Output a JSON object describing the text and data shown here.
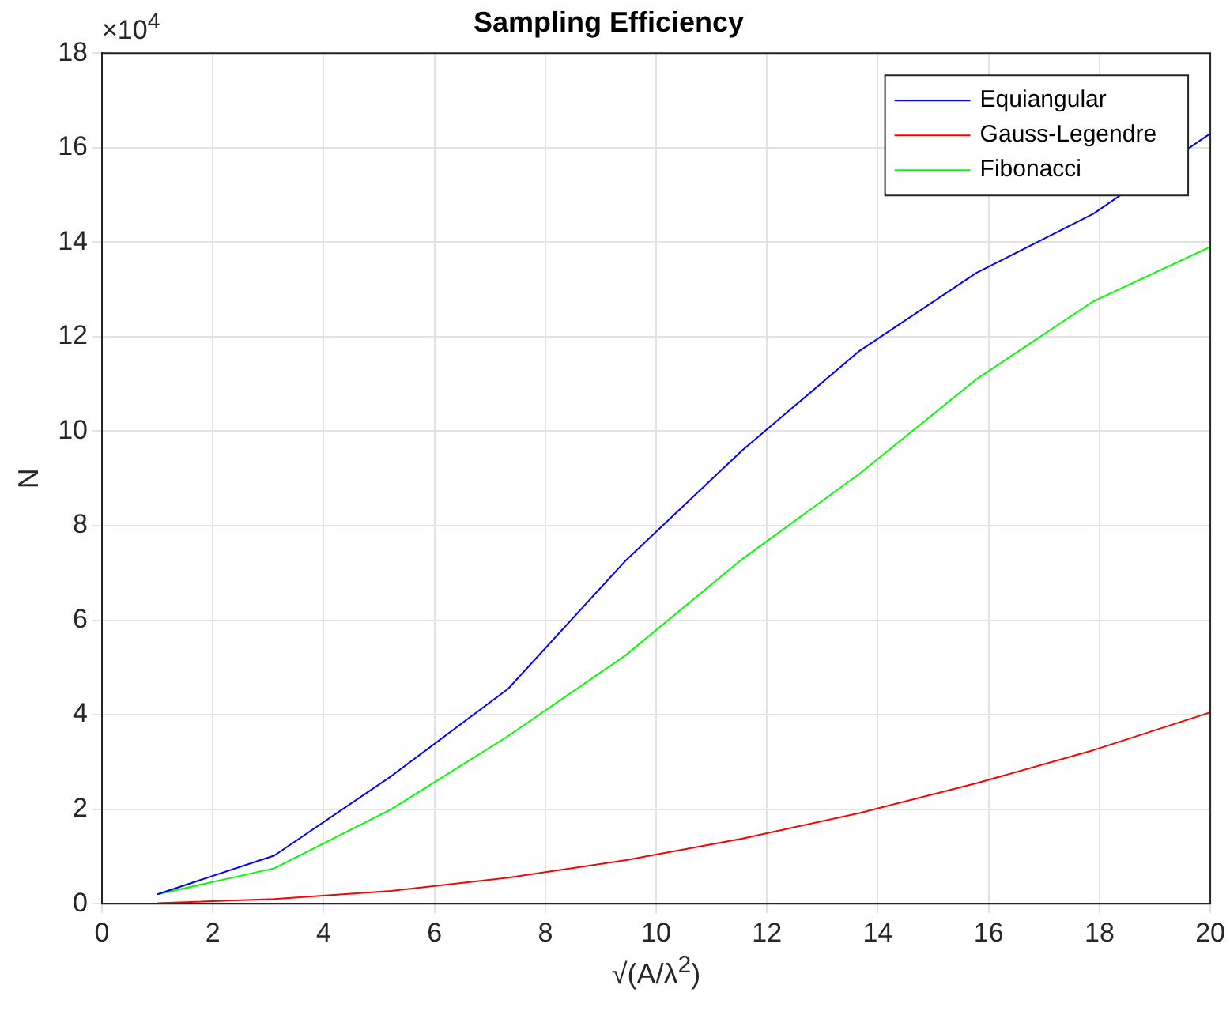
{
  "chart_data": {
    "type": "line",
    "title": "Sampling Efficiency",
    "xlabel": "√(A/λ$^{2}$)",
    "ylabel": "N",
    "annotations": [
      "×10$^{4}$"
    ],
    "x": [
      1,
      3.11,
      5.22,
      7.33,
      9.44,
      11.56,
      13.67,
      15.78,
      17.89,
      20
    ],
    "series": [
      {
        "name": "Equiangular",
        "color": "#0000ff",
        "values": [
          0.2,
          1.02,
          2.7,
          4.55,
          7.25,
          9.6,
          11.7,
          13.35,
          14.6,
          16.3
        ]
      },
      {
        "name": "Gauss-Legendre",
        "color": "#ff0000",
        "values": [
          0.01,
          0.1,
          0.27,
          0.55,
          0.92,
          1.38,
          1.92,
          2.55,
          3.25,
          4.05
        ]
      },
      {
        "name": "Fibonacci",
        "color": "#00ff00",
        "values": [
          0.2,
          0.75,
          2.0,
          3.55,
          5.25,
          7.3,
          9.1,
          11.1,
          12.75,
          13.9
        ]
      }
    ],
    "xlim": [
      0,
      20
    ],
    "xticks": [
      0,
      2,
      4,
      6,
      8,
      10,
      12,
      14,
      16,
      18,
      20
    ],
    "ylim": [
      0,
      18
    ],
    "yticks": [
      0,
      2,
      4,
      6,
      8,
      10,
      12,
      14,
      16,
      18
    ],
    "grid": true,
    "legend": "top right",
    "marker": "none",
    "line_style": "solid"
  }
}
